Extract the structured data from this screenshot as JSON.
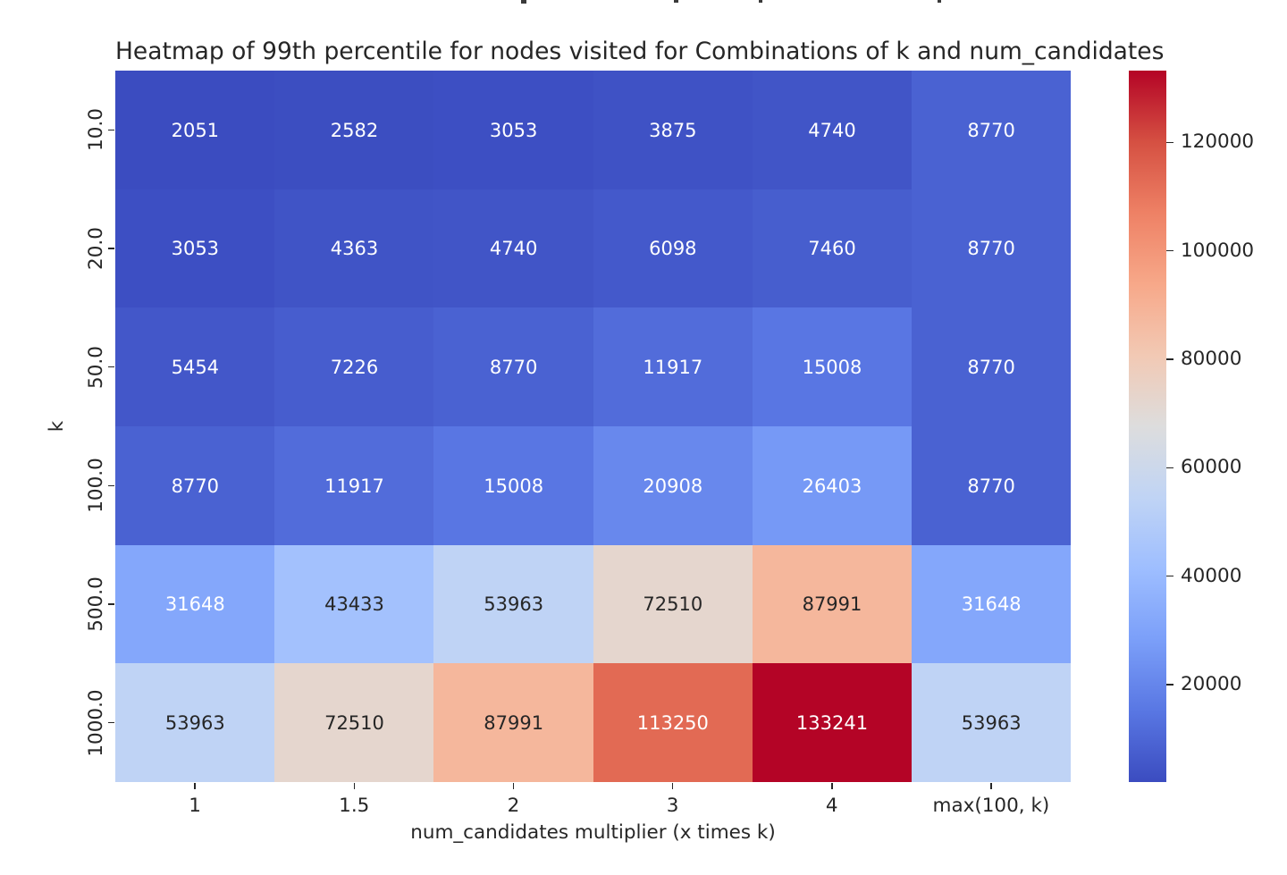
{
  "figure": {
    "background": "#ffffff"
  },
  "chart_data": {
    "type": "heatmap",
    "title": "Heatmap of 99th percentile for nodes visited for Combinations of k and num_candidates",
    "xlabel": "num_candidates multiplier (x times k)",
    "ylabel": "k",
    "x_tick_labels": [
      "1",
      "1.5",
      "2",
      "3",
      "4",
      "max(100, k)"
    ],
    "y_tick_labels": [
      "10.0",
      "20.0",
      "50.0",
      "100.0",
      "500.0",
      "1000.0"
    ],
    "values": [
      [
        2051,
        2582,
        3053,
        3875,
        4740,
        8770
      ],
      [
        3053,
        4363,
        4740,
        6098,
        7460,
        8770
      ],
      [
        5454,
        7226,
        8770,
        11917,
        15008,
        8770
      ],
      [
        8770,
        11917,
        15008,
        20908,
        26403,
        8770
      ],
      [
        31648,
        43433,
        53963,
        72510,
        87991,
        31648
      ],
      [
        53963,
        72510,
        87991,
        113250,
        133241,
        53963
      ]
    ],
    "vmin": 2051,
    "vmax": 133241,
    "annotated": true,
    "colormap": "coolwarm",
    "colorbar_position": "right",
    "colorbar_tick_values": [
      20000,
      40000,
      60000,
      80000,
      100000,
      120000
    ],
    "grid": false
  },
  "colors": {
    "annotation_light_text": "#ffffff",
    "annotation_dark_text": "#262626",
    "axis_text": "#262626",
    "title_text": "#262626",
    "tick_mark": "#262626",
    "colormap_stops": [
      "#3b4cc0",
      "#5977e3",
      "#7b9ff9",
      "#9ebeff",
      "#c0d4f5",
      "#dddddd",
      "#f2c9b4",
      "#f7a889",
      "#ee8165",
      "#d55042",
      "#b40426"
    ]
  }
}
